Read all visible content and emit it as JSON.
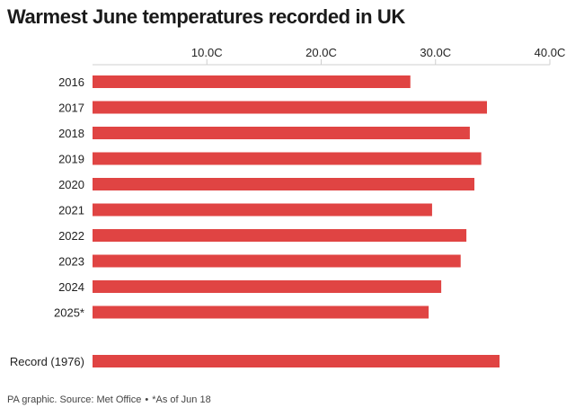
{
  "title": "Warmest June temperatures recorded in UK",
  "footer": {
    "source": "PA graphic. Source: Met Office",
    "separator": "•",
    "note": "*As of Jun 18"
  },
  "colors": {
    "bar": "#e04443",
    "axis": "#cfcfcf",
    "text": "#222222"
  },
  "chart_data": {
    "type": "bar",
    "orientation": "horizontal",
    "title": "Warmest June temperatures recorded in UK",
    "categories": [
      "2016",
      "2017",
      "2018",
      "2019",
      "2020",
      "2021",
      "2022",
      "2023",
      "2024",
      "2025*",
      "Record (1976)"
    ],
    "values": [
      27.8,
      34.5,
      33.0,
      34.0,
      33.4,
      29.7,
      32.7,
      32.2,
      30.5,
      29.4,
      35.6
    ],
    "unit": "C",
    "xlim": [
      0,
      40
    ],
    "xticks": [
      10,
      20,
      30,
      40
    ],
    "xtick_labels": [
      "10.0C",
      "20.0C",
      "30.0C",
      "40.0C"
    ],
    "xaxis_position": "top",
    "grid": false,
    "legend": "none"
  }
}
